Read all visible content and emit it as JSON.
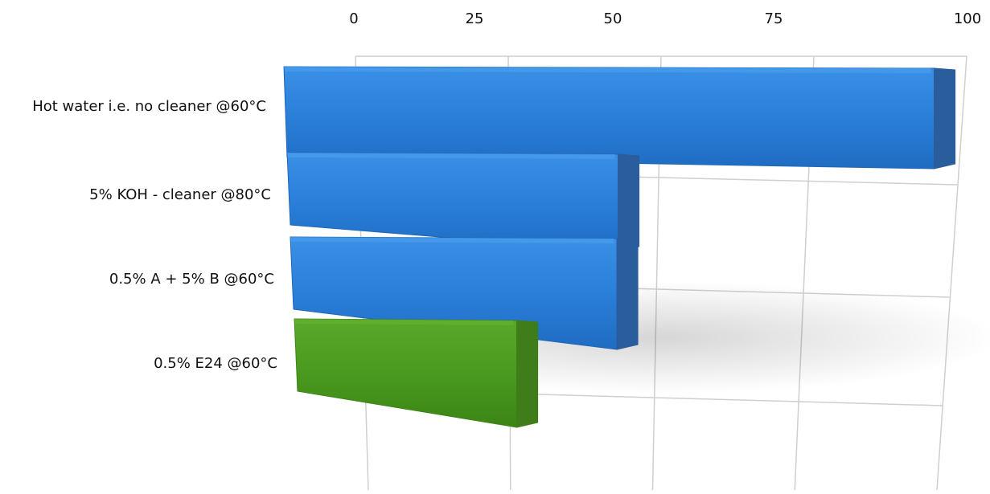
{
  "chart_data": {
    "type": "bar",
    "orientation": "horizontal",
    "style": "3d-perspective",
    "title": "",
    "xlabel": "",
    "ylabel": "",
    "xlim": [
      0,
      100
    ],
    "ticks": [
      "0",
      "25",
      "50",
      "75",
      "100"
    ],
    "tick_values": [
      0,
      25,
      50,
      75,
      100
    ],
    "axis_position": "top",
    "grid": true,
    "legend": "none",
    "categories": [
      "Hot water i.e. no cleaner @60°C",
      "5% KOH - cleaner @80°C",
      "0.5% A + 5% B @60°C",
      "0.5% E24 @60°C"
    ],
    "values": [
      97,
      45,
      45,
      28
    ],
    "colors": [
      "#2b82df",
      "#2b82df",
      "#2b82df",
      "#4e9a1c"
    ]
  }
}
